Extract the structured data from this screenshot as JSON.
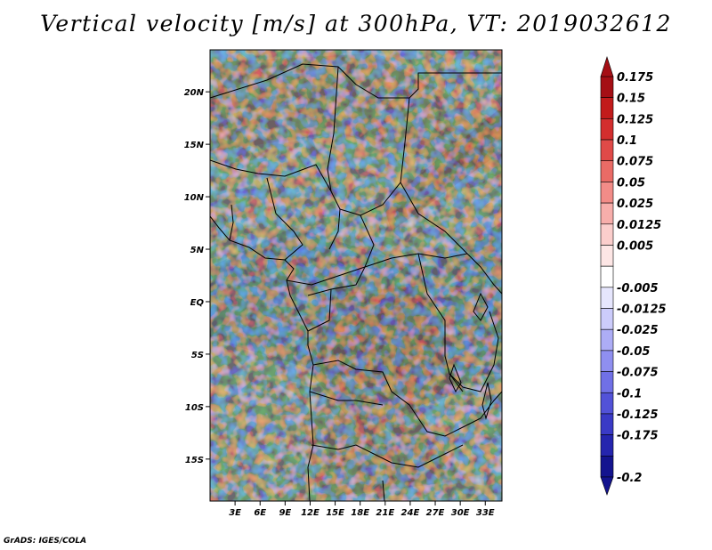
{
  "title": "Vertical velocity [m/s] at 300hPa, VT: 2019032612",
  "credit": "GrADS: IGES/COLA",
  "map": {
    "lat_range": [
      -19,
      24
    ],
    "lon_range": [
      0,
      35
    ],
    "lat_ticks": [
      {
        "value": 20,
        "label": "20N"
      },
      {
        "value": 15,
        "label": "15N"
      },
      {
        "value": 10,
        "label": "10N"
      },
      {
        "value": 5,
        "label": "5N"
      },
      {
        "value": 0,
        "label": "EQ"
      },
      {
        "value": -5,
        "label": "5S"
      },
      {
        "value": -10,
        "label": "10S"
      },
      {
        "value": -15,
        "label": "15S"
      }
    ],
    "lon_ticks": [
      {
        "value": 3,
        "label": "3E"
      },
      {
        "value": 6,
        "label": "6E"
      },
      {
        "value": 9,
        "label": "9E"
      },
      {
        "value": 12,
        "label": "12E"
      },
      {
        "value": 15,
        "label": "15E"
      },
      {
        "value": 18,
        "label": "18E"
      },
      {
        "value": 21,
        "label": "21E"
      },
      {
        "value": 24,
        "label": "24E"
      },
      {
        "value": 27,
        "label": "27E"
      },
      {
        "value": 30,
        "label": "30E"
      },
      {
        "value": 33,
        "label": "33E"
      }
    ]
  },
  "colorbar": {
    "bins": [
      {
        "color": "#a50f15",
        "label": "0.175"
      },
      {
        "color": "#c21b1b",
        "label": "0.15"
      },
      {
        "color": "#d32e2e",
        "label": "0.125"
      },
      {
        "color": "#e04a48",
        "label": "0.1"
      },
      {
        "color": "#ea6b66",
        "label": "0.075"
      },
      {
        "color": "#f28c88",
        "label": "0.05"
      },
      {
        "color": "#f7aeab",
        "label": "0.025"
      },
      {
        "color": "#fbcecc",
        "label": "0.0125"
      },
      {
        "color": "#fde6e5",
        "label": "0.005"
      },
      {
        "color": "#ffffff",
        "label": ""
      },
      {
        "color": "#e6e6fd",
        "label": "-0.005"
      },
      {
        "color": "#ccccfb",
        "label": "-0.0125"
      },
      {
        "color": "#adadf6",
        "label": "-0.025"
      },
      {
        "color": "#8f8ff0",
        "label": "-0.05"
      },
      {
        "color": "#7070e6",
        "label": "-0.075"
      },
      {
        "color": "#5252d8",
        "label": "-0.1"
      },
      {
        "color": "#3a3ac6",
        "label": "-0.125"
      },
      {
        "color": "#2525ae",
        "label": "-0.175"
      },
      {
        "color": "#14148f",
        "label": "-0.2"
      }
    ]
  }
}
